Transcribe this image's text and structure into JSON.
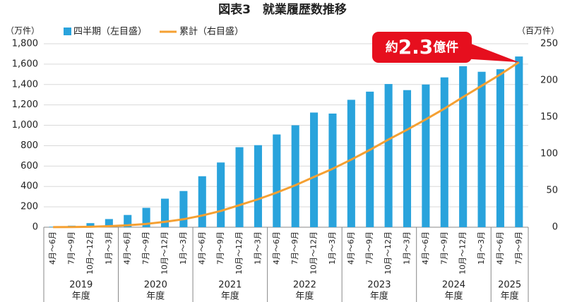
{
  "chart_data": {
    "type": "bar_line",
    "title": "図表3　就業履歴数推移",
    "y_unit": "（万件）",
    "y2_unit": "（百万件）",
    "categories": [
      "4月～6月",
      "7月～9月",
      "10月～12月",
      "1月～3月",
      "4月～6月",
      "7月～9月",
      "10月～12月",
      "1月～3月",
      "4月～6月",
      "7月～9月",
      "10月～12月",
      "1月～3月",
      "4月～6月",
      "7月～9月",
      "10月～12月",
      "1月～3月",
      "4月～6月",
      "7月～9月",
      "10月～12月",
      "1月～3月",
      "4月～6月",
      "7月～9月",
      "10月～12月",
      "1月～3月",
      "4月～6月",
      "7月～9月"
    ],
    "category_groups": [
      {
        "label": "2019",
        "unit": "年度",
        "count": 4
      },
      {
        "label": "2020",
        "unit": "年度",
        "count": 4
      },
      {
        "label": "2021",
        "unit": "年度",
        "count": 4
      },
      {
        "label": "2022",
        "unit": "年度",
        "count": 4
      },
      {
        "label": "2023",
        "unit": "年度",
        "count": 4
      },
      {
        "label": "2024",
        "unit": "年度",
        "count": 4
      },
      {
        "label": "2025",
        "unit": "年度",
        "count": 2
      }
    ],
    "series": [
      {
        "name": "四半期（左目盛）",
        "color": "#29a3dc",
        "kind": "bar",
        "values": [
          5,
          15,
          40,
          80,
          120,
          190,
          280,
          355,
          500,
          635,
          785,
          805,
          910,
          1000,
          1125,
          1115,
          1250,
          1330,
          1405,
          1345,
          1400,
          1470,
          1580,
          1525,
          1550,
          1675
        ]
      },
      {
        "name": "累計（右目盛）",
        "color": "#f5a032",
        "kind": "line",
        "axis": "y2",
        "values": [
          0.1,
          0.2,
          0.6,
          1.4,
          2.6,
          4.5,
          7.3,
          10.9,
          15.9,
          22.2,
          30.1,
          38.1,
          47.2,
          57.2,
          68.5,
          79.6,
          92.1,
          105.4,
          119.5,
          132.9,
          146.9,
          161.6,
          177.4,
          192.7,
          208.2,
          224.9
        ]
      }
    ],
    "ylim": [
      0,
      1800
    ],
    "yticks": [
      0,
      200,
      400,
      600,
      800,
      {
        "value": 1000,
        "label": "1,000"
      },
      {
        "value": 1200,
        "label": "1,200"
      },
      {
        "value": 1400,
        "label": "1,400"
      },
      {
        "value": 1600,
        "label": "1,600"
      },
      {
        "value": 1800,
        "label": "1,800"
      }
    ],
    "y2lim": [
      0,
      250
    ],
    "y2ticks": [
      0,
      50,
      100,
      150,
      200,
      250
    ],
    "grid": true,
    "annotation": {
      "prefix": "約",
      "number": "2.3",
      "suffix": "億件",
      "color": "#e60f1e"
    }
  }
}
